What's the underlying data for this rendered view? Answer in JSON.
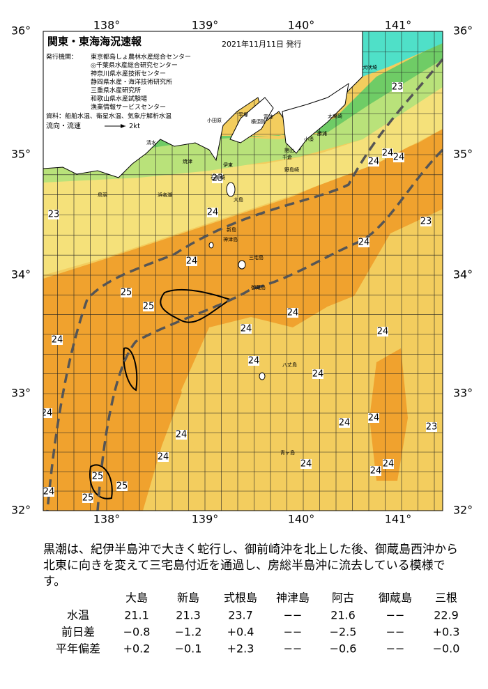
{
  "header": {
    "title": "関東・東海海況速報",
    "date": "2021年11月11日 発行",
    "issuer_label": "発行機関：",
    "issuers": [
      "東京都島しょ農林水産総合センター",
      "◎千葉県水産総合研究センター",
      "神奈川県水産技術センター",
      "静岡県水産・海洋技術研究所",
      "三重県水産研究所",
      "和歌山県水産試験場",
      "漁業情報サービスセンター"
    ],
    "sources": "資料：船舶水温、衛星水温、気象庁解析水温",
    "flow_label": "流向・流速",
    "flow_scale": "2kt"
  },
  "map": {
    "lon_labels": [
      "138°",
      "139°",
      "140°",
      "141°"
    ],
    "lat_labels": [
      "36°",
      "35°",
      "34°",
      "33°",
      "32°"
    ],
    "contour_labels": [
      "23",
      "24",
      "24",
      "24",
      "23",
      "23",
      "24",
      "23",
      "24",
      "24",
      "25",
      "25",
      "24",
      "24",
      "24",
      "24",
      "24",
      "24",
      "24",
      "24",
      "24",
      "23",
      "24",
      "24",
      "24",
      "24",
      "24",
      "25",
      "25",
      "25",
      "24"
    ],
    "places": [
      "犬吠埼",
      "太東崎",
      "勝浦",
      "小湊",
      "館山",
      "千倉",
      "野島崎",
      "大島",
      "新島",
      "神津島",
      "三宅島",
      "御蔵島",
      "八丈島",
      "青ヶ島",
      "石廊崎",
      "伊東",
      "小田原",
      "平塚",
      "横須賀",
      "富津",
      "焼津",
      "清水",
      "浜名湖",
      "鳥羽"
    ]
  },
  "text": {
    "lines": [
      "黒潮は、紀伊半島沖で大きく蛇行し、御前崎沖を北上した後、御蔵島西沖から",
      "北東に向きを変えて三宅島付近を通過し、房総半島沖に流去している模様で",
      "す。"
    ]
  },
  "table": {
    "header": [
      "大島",
      "新島",
      "式根島",
      "神津島",
      "阿古",
      "御蔵島",
      "三根"
    ],
    "rows": [
      [
        "水温",
        "21.1",
        "21.3",
        "23.7",
        "−−",
        "21.6",
        "−−",
        "22.9"
      ],
      [
        "前日差",
        "−0.8",
        "−1.2",
        "+0.4",
        "−−",
        "−2.5",
        "−−",
        "+0.3"
      ],
      [
        "平年偏差",
        "+0.2",
        "−0.1",
        "+2.3",
        "−−",
        "−0.6",
        "−−",
        "−0.0"
      ]
    ]
  }
}
